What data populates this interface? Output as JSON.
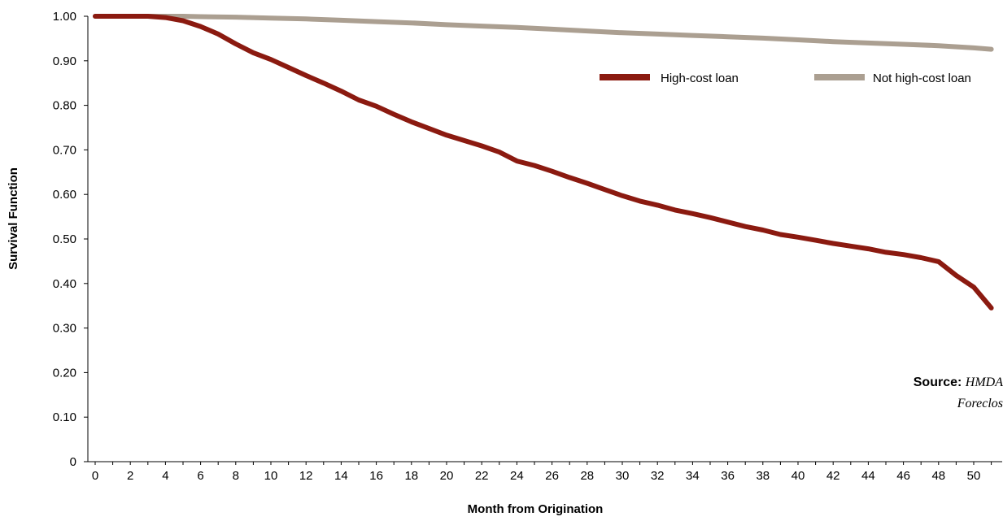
{
  "chart_data": {
    "type": "line",
    "xlabel": "Month from Origination",
    "ylabel": "Survival Function",
    "xlim": [
      0,
      51
    ],
    "ylim": [
      0,
      1
    ],
    "x_ticks": [
      "0",
      "2",
      "4",
      "6",
      "8",
      "10",
      "12",
      "14",
      "16",
      "18",
      "20",
      "22",
      "24",
      "26",
      "28",
      "30",
      "32",
      "34",
      "36",
      "38",
      "40",
      "42",
      "44",
      "46",
      "48",
      "50"
    ],
    "y_ticks": [
      "0",
      "0.10",
      "0.20",
      "0.30",
      "0.40",
      "0.50",
      "0.60",
      "0.70",
      "0.80",
      "0.90",
      "1.00"
    ],
    "legend_position": "top-right",
    "series": [
      {
        "name": "High-cost loan",
        "color": "#8b1a10",
        "x": [
          0,
          1,
          2,
          3,
          4,
          5,
          6,
          7,
          8,
          9,
          10,
          11,
          12,
          13,
          14,
          15,
          16,
          17,
          18,
          19,
          20,
          21,
          22,
          23,
          24,
          25,
          26,
          27,
          28,
          29,
          30,
          31,
          32,
          33,
          34,
          35,
          36,
          37,
          38,
          39,
          40,
          41,
          42,
          43,
          44,
          45,
          46,
          47,
          48,
          49,
          50,
          51
        ],
        "values": [
          1.0,
          1.0,
          1.0,
          1.0,
          0.997,
          0.99,
          0.977,
          0.96,
          0.938,
          0.918,
          0.903,
          0.885,
          0.867,
          0.85,
          0.832,
          0.812,
          0.798,
          0.78,
          0.763,
          0.748,
          0.733,
          0.721,
          0.709,
          0.695,
          0.675,
          0.665,
          0.652,
          0.638,
          0.625,
          0.611,
          0.597,
          0.585,
          0.576,
          0.565,
          0.557,
          0.548,
          0.538,
          0.528,
          0.52,
          0.51,
          0.504,
          0.497,
          0.49,
          0.484,
          0.478,
          0.47,
          0.465,
          0.458,
          0.449,
          0.418,
          0.392,
          0.345
        ]
      },
      {
        "name": "Not high-cost loan",
        "color": "#ab9f91",
        "x": [
          0,
          2,
          4,
          5,
          6,
          8,
          10,
          12,
          14,
          16,
          18,
          20,
          22,
          24,
          26,
          28,
          30,
          32,
          34,
          36,
          38,
          40,
          42,
          44,
          46,
          48,
          50,
          51
        ],
        "values": [
          1.0,
          1.0,
          1.0,
          1.0,
          0.999,
          0.998,
          0.996,
          0.994,
          0.991,
          0.988,
          0.985,
          0.981,
          0.978,
          0.975,
          0.971,
          0.967,
          0.963,
          0.96,
          0.957,
          0.954,
          0.951,
          0.947,
          0.943,
          0.94,
          0.937,
          0.934,
          0.929,
          0.926
        ]
      }
    ]
  },
  "source": {
    "label": "Source:",
    "line1": "HMDA",
    "line2": "Foreclos"
  }
}
